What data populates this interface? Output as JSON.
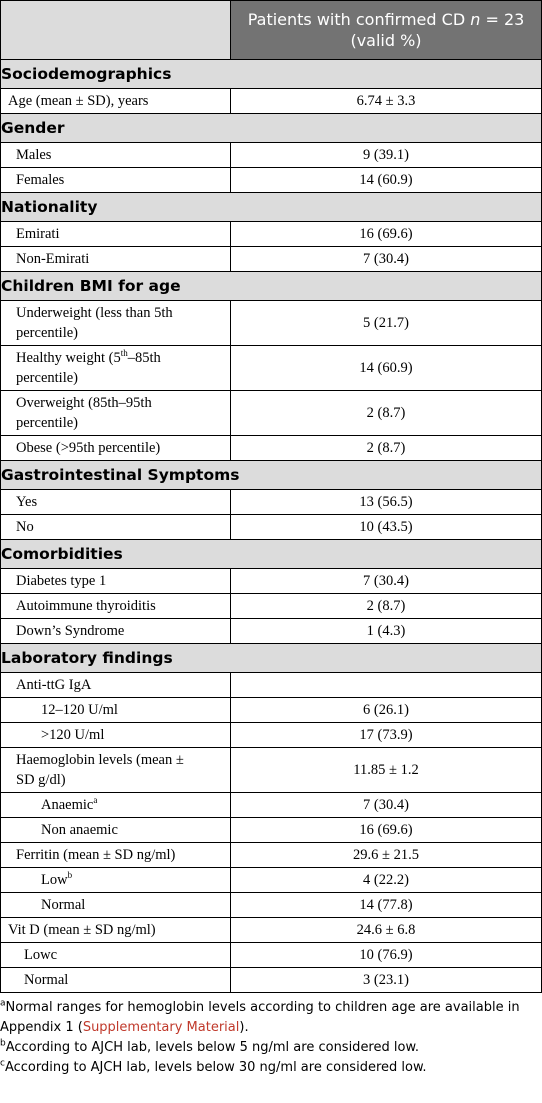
{
  "header": {
    "col_label": "",
    "col_value_line1_pre": "Patients with confirmed CD ",
    "col_value_n": "n",
    "col_value_eq": " = 23",
    "col_value_line2": "(valid %)"
  },
  "sections": {
    "socio": "Sociodemographics",
    "gender": "Gender",
    "nationality": "Nationality",
    "bmi": "Children BMI for age",
    "gi": "Gastrointestinal Symptoms",
    "comorb": "Comorbidities",
    "lab": "Laboratory findings"
  },
  "rows": {
    "age": {
      "label": "Age (mean ± SD), years",
      "value": "6.74 ± 3.3"
    },
    "males": {
      "label": "Males",
      "value": "9 (39.1)"
    },
    "females": {
      "label": "Females",
      "value": "14 (60.9)"
    },
    "emirati": {
      "label": "Emirati",
      "value": "16 (69.6)"
    },
    "non_emirati": {
      "label": "Non-Emirati",
      "value": "7 (30.4)"
    },
    "underweight": {
      "label_1": "Underweight (less than 5th",
      "label_2": "percentile)",
      "value": "5 (21.7)"
    },
    "healthy": {
      "label_1a": "Healthy weight (5",
      "sup": "th",
      "label_1b": "–85th",
      "label_2": "percentile)",
      "value": "14 (60.9)"
    },
    "overweight": {
      "label_1": "Overweight (85th–95th",
      "label_2": "percentile)",
      "value": "2 (8.7)"
    },
    "obese": {
      "label": "Obese (>95th percentile)",
      "value": "2 (8.7)"
    },
    "gi_yes": {
      "label": "Yes",
      "value": "13 (56.5)"
    },
    "gi_no": {
      "label": "No",
      "value": "10 (43.5)"
    },
    "diabetes": {
      "label": "Diabetes type 1",
      "value": "7 (30.4)"
    },
    "thyroid": {
      "label": "Autoimmune thyroiditis",
      "value": "2 (8.7)"
    },
    "downs": {
      "label": "Down’s Syndrome",
      "value": "1 (4.3)"
    },
    "anti_ttg": {
      "label": "Anti-ttG IgA",
      "value": ""
    },
    "ttg_12_120": {
      "label": "12–120 U/ml",
      "value": "6 (26.1)"
    },
    "ttg_120": {
      "label": ">120 U/ml",
      "value": "17 (73.9)"
    },
    "hb": {
      "label_1": "Haemoglobin levels (mean ±",
      "label_2": "SD g/dl)",
      "value": "11.85 ± 1.2"
    },
    "anaemic": {
      "label": "Anaemic",
      "sup": "a",
      "value": "7 (30.4)"
    },
    "non_anaemic": {
      "label": "Non anaemic",
      "value": "16 (69.6)"
    },
    "ferritin": {
      "label": "Ferritin (mean ± SD ng/ml)",
      "value": "29.6 ± 21.5"
    },
    "ferritin_low": {
      "label": "Low",
      "sup": "b",
      "value": "4 (22.2)"
    },
    "ferritin_normal": {
      "label": "Normal",
      "value": "14 (77.8)"
    },
    "vitd": {
      "label": "Vit D (mean ± SD ng/ml)",
      "value": "24.6 ± 6.8"
    },
    "vitd_low": {
      "label": "Lowc",
      "value": "10 (76.9)"
    },
    "vitd_normal": {
      "label": "Normal",
      "value": "3 (23.1)"
    }
  },
  "footnotes": {
    "a_sup": "a",
    "a_text_1": "Normal ranges for hemoglobin levels according to children age are available in",
    "a_text_2_pre": "Appendix 1 (",
    "a_link": "Supplementary Material",
    "a_text_2_post": ").",
    "b_sup": "b",
    "b_text": "According to AJCH lab, levels below 5 ng/ml are considered low.",
    "c_sup": "c",
    "c_text": "According to AJCH lab, levels below 30 ng/ml are considered low."
  }
}
